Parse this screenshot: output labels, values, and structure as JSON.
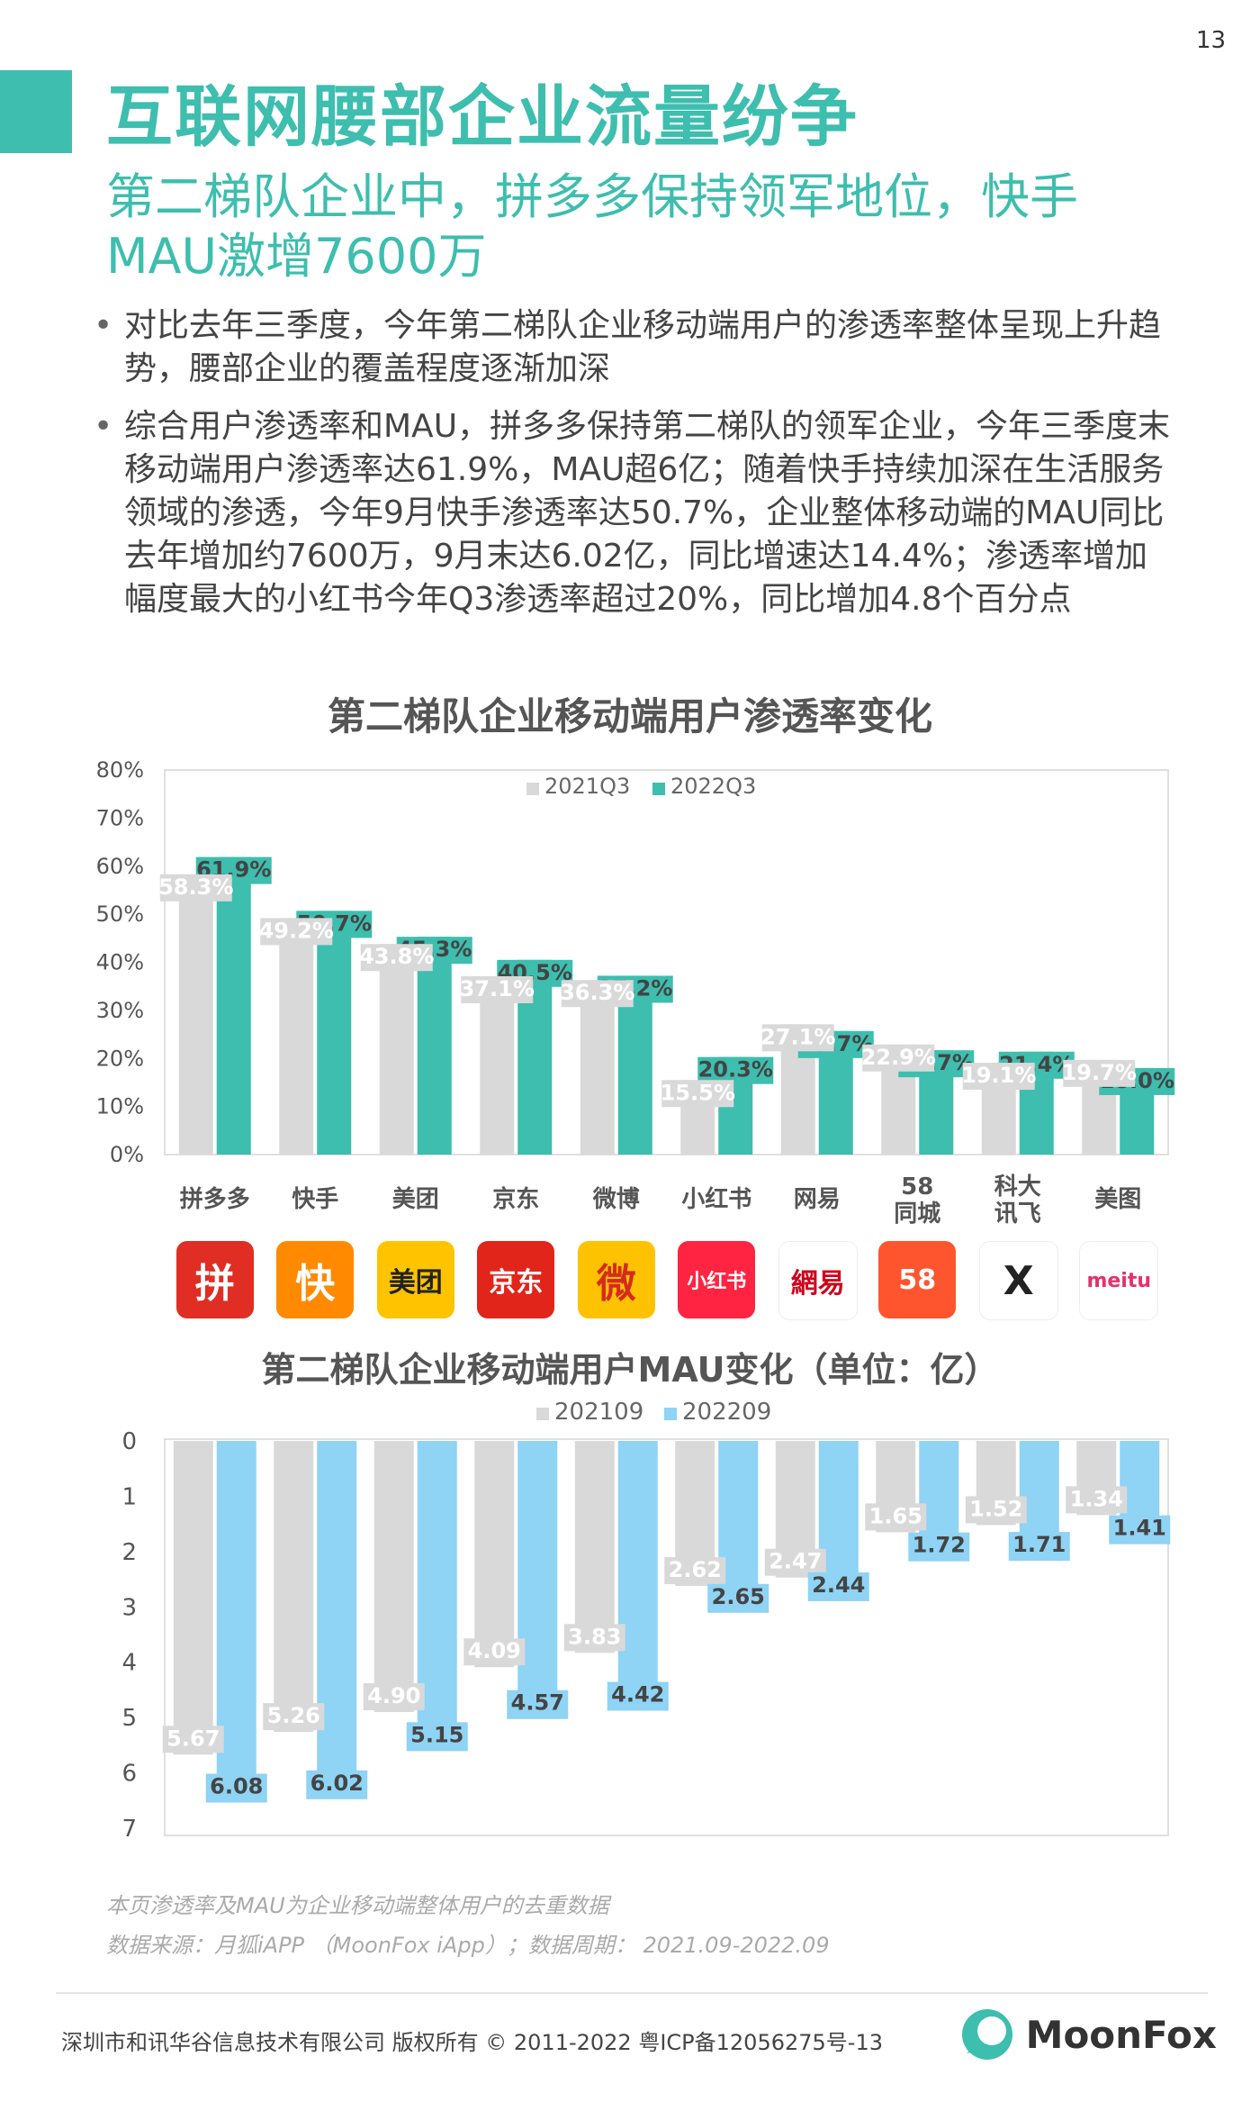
{
  "page_number": "13",
  "title": "互联网腰部企业流量纷争",
  "subtitle": "第二梯队企业中，拼多多保持领军地位，快手MAU激增7600万",
  "bullets": [
    "对比去年三季度，今年第二梯队企业移动端用户的渗透率整体呈现上升趋势，腰部企业的覆盖程度逐渐加深",
    "综合用户渗透率和MAU，拼多多保持第二梯队的领军企业，今年三季度末移动端用户渗透率达61.9%，MAU超6亿；随着快手持续加深在生活服务领域的渗透，今年9月快手渗透率达50.7%，企业整体移动端的MAU同比去年增加约7600万，9月末达6.02亿，同比增速达14.4%；渗透率增加幅度最大的小红书今年Q3渗透率超过20%，同比增加4.8个百分点"
  ],
  "logos": [
    {
      "text": "拼",
      "color": "#e02e24",
      "fg": "#ffffff",
      "icon": "pinduoduo-logo"
    },
    {
      "text": "快",
      "color": "#ff8a00",
      "fg": "#ffffff",
      "icon": "kuaishou-logo"
    },
    {
      "text": "美团",
      "color": "#ffc300",
      "fg": "#222222",
      "icon": "meituan-logo"
    },
    {
      "text": "京东",
      "color": "#e1251b",
      "fg": "#ffffff",
      "icon": "jd-logo"
    },
    {
      "text": "微",
      "color": "#ffc200",
      "fg": "#d52b1e",
      "icon": "weibo-logo"
    },
    {
      "text": "小红书",
      "color": "#ff2442",
      "fg": "#ffffff",
      "icon": "xiaohongshu-logo"
    },
    {
      "text": "網易",
      "color": "#ffffff",
      "fg": "#d0021b",
      "icon": "netease-logo"
    },
    {
      "text": "58",
      "color": "#ff552e",
      "fg": "#ffffff",
      "icon": "58-logo"
    },
    {
      "text": "X",
      "color": "#ffffff",
      "fg": "#222222",
      "icon": "iflytek-logo"
    },
    {
      "text": "meitu",
      "color": "#ffffff",
      "fg": "#e6306f",
      "icon": "meitu-logo"
    }
  ],
  "notes": [
    "本页渗透率及MAU为企业移动端整体用户的去重数据",
    "数据来源：月狐iAPP （MoonFox iApp）；数据周期： 2021.09-2022.09"
  ],
  "footer": "深圳市和讯华谷信息技术有限公司 版权所有 © 2011-2022 粤ICP备12056275号-13",
  "brand": "MoonFox",
  "colors": {
    "teal": "#3dbeae",
    "grey": "#d9d9d9",
    "blue": "#8fd3f5"
  },
  "chart_data": [
    {
      "type": "bar",
      "title": "第二梯队企业移动端用户渗透率变化",
      "categories": [
        "拼多多",
        "快手",
        "美团",
        "京东",
        "微博",
        "小红书",
        "网易",
        "58\n同城",
        "科大\n讯飞",
        "美图"
      ],
      "series": [
        {
          "name": "2021Q3",
          "values": [
            58.3,
            49.2,
            43.8,
            37.1,
            36.3,
            15.5,
            27.1,
            22.9,
            19.1,
            19.7
          ],
          "labels": [
            "58.3%",
            "49.2%",
            "43.8%",
            "37.1%",
            "36.3%",
            "15.5%",
            "27.1%",
            "22.9%",
            "19.1%",
            "19.7%"
          ]
        },
        {
          "name": "2022Q3",
          "values": [
            61.9,
            50.7,
            45.3,
            40.5,
            37.2,
            20.3,
            25.7,
            21.7,
            21.4,
            18.0
          ],
          "labels": [
            "61.9%",
            "50.7%",
            "45.3%",
            "40.5%",
            "37.2%",
            "20.3%",
            "25.7%",
            "21.7%",
            "21.4%",
            "18.0%"
          ]
        }
      ],
      "ylim": [
        0,
        80
      ],
      "yticks": [
        "0%",
        "10%",
        "20%",
        "30%",
        "40%",
        "50%",
        "60%",
        "70%",
        "80%"
      ],
      "legend": "top-center"
    },
    {
      "type": "bar",
      "title": "第二梯队企业移动端用户MAU变化（单位：亿）",
      "categories": [
        "拼多多",
        "快手",
        "美团",
        "京东",
        "微博",
        "小红书",
        "网易",
        "58同城",
        "科大讯飞",
        "美图"
      ],
      "series": [
        {
          "name": "202109",
          "values": [
            5.67,
            5.26,
            4.9,
            4.09,
            3.83,
            2.62,
            2.47,
            1.65,
            1.52,
            1.34
          ],
          "labels": [
            "5.67",
            "5.26",
            "4.90",
            "4.09",
            "3.83",
            "2.62",
            "2.47",
            "1.65",
            "1.52",
            "1.34"
          ]
        },
        {
          "name": "202209",
          "values": [
            6.08,
            6.02,
            5.15,
            4.57,
            4.42,
            2.65,
            2.44,
            1.72,
            1.71,
            1.41
          ],
          "labels": [
            "6.08",
            "6.02",
            "5.15",
            "4.57",
            "4.42",
            "2.65",
            "2.44",
            "1.72",
            "1.71",
            "1.41"
          ]
        }
      ],
      "ylim": [
        0,
        7
      ],
      "yticks": [
        "0",
        "1",
        "2",
        "3",
        "4",
        "5",
        "6",
        "7"
      ],
      "y_inverted": true,
      "legend": "top-center"
    }
  ]
}
